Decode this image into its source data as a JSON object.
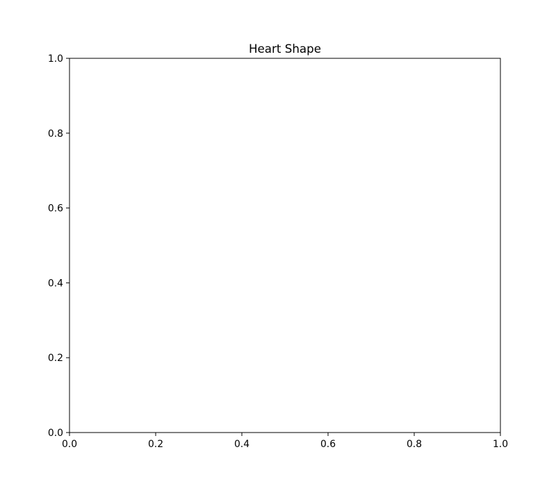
{
  "chart_data": {
    "type": "line",
    "title": "Heart Shape",
    "xlabel": "",
    "ylabel": "",
    "xlim": [
      0.0,
      1.0
    ],
    "ylim": [
      0.0,
      1.0
    ],
    "x_ticks": [
      "0.0",
      "0.2",
      "0.4",
      "0.6",
      "0.8",
      "1.0"
    ],
    "y_ticks": [
      "0.0",
      "0.2",
      "0.4",
      "0.6",
      "0.8",
      "1.0"
    ],
    "grid": false,
    "series": []
  }
}
